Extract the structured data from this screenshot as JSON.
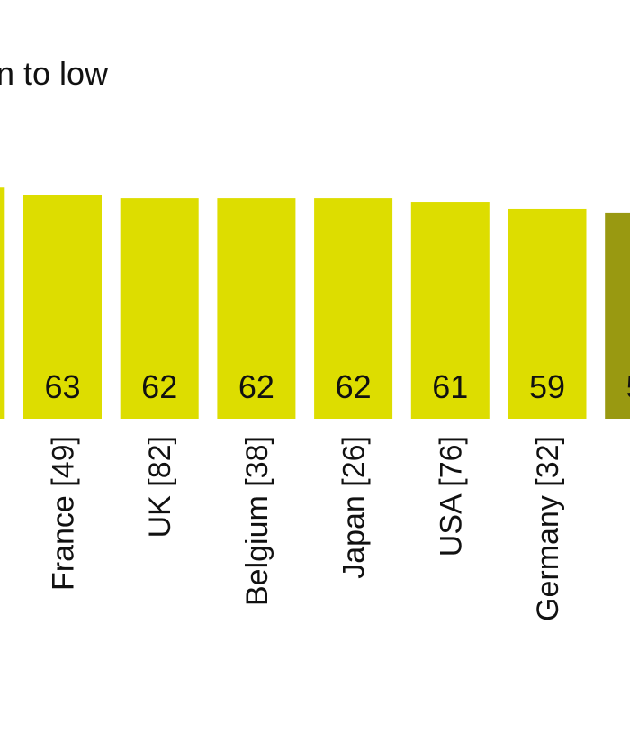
{
  "chart_data": {
    "type": "bar",
    "title": "n to low",
    "categories": [
      null,
      "France [49]",
      "UK [82]",
      "Belgium [38]",
      "Japan [26]",
      "USA [76]",
      "Germany [32]",
      null
    ],
    "values": [
      65,
      63,
      62,
      62,
      62,
      61,
      59,
      58
    ],
    "colors": [
      "#dddd00",
      "#dddd00",
      "#dddd00",
      "#dddd00",
      "#dddd00",
      "#dddd00",
      "#dddd00",
      "#999911"
    ]
  }
}
